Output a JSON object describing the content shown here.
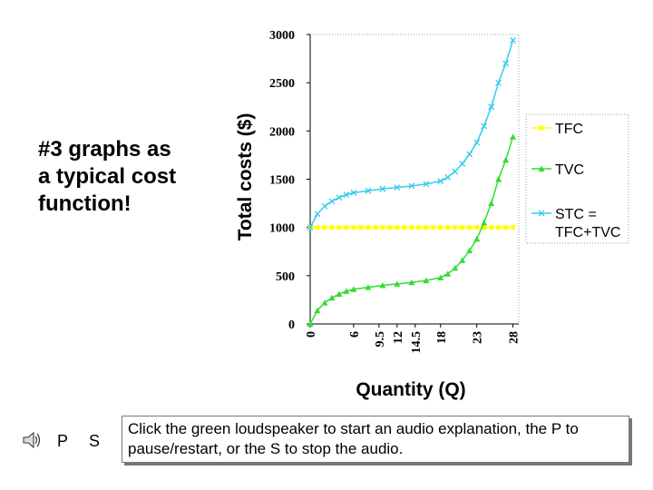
{
  "slide": {
    "heading_lines": [
      "#3 graphs as",
      "a typical cost",
      "function!"
    ],
    "audio": {
      "speaker_icon": "loudspeaker-icon",
      "pause_label": "P",
      "stop_label": "S",
      "instructions": "Click the green loudspeaker to start an audio explanation, the P to pause/restart, or the S to stop the audio."
    }
  },
  "chart_data": {
    "type": "line",
    "title": "",
    "xlabel": "Quantity (Q)",
    "ylabel": "Total costs ($)",
    "ylim": [
      0,
      3000
    ],
    "yticks": [
      "0",
      "500",
      "1000",
      "1500",
      "2000",
      "2500",
      "3000"
    ],
    "xtick_labels": [
      "0",
      "6",
      "9.5",
      "12",
      "14.5",
      "18",
      "23",
      "28"
    ],
    "xtick_at": [
      0,
      6,
      9.5,
      12,
      14.5,
      18,
      23,
      28
    ],
    "xlim": [
      0,
      28.8
    ],
    "grid": false,
    "legend_position": "right",
    "series": [
      {
        "name": "TFC",
        "color": "#ffff00",
        "marker": "square",
        "x": [
          0,
          28
        ],
        "values": [
          1000,
          1000
        ]
      },
      {
        "name": "TVC",
        "color": "#33dd33",
        "marker": "triangle",
        "x": [
          0,
          1,
          2,
          3,
          4,
          5,
          6,
          8,
          10,
          12,
          14,
          16,
          18,
          19,
          20,
          21,
          22,
          23,
          24,
          25,
          26,
          27,
          28
        ],
        "values": [
          0,
          140,
          220,
          270,
          310,
          340,
          360,
          380,
          400,
          415,
          430,
          450,
          480,
          520,
          580,
          660,
          760,
          880,
          1050,
          1250,
          1500,
          1700,
          1940
        ]
      },
      {
        "name": "STC = TFC+TVC",
        "color": "#33ccee",
        "marker": "x",
        "x": [
          0,
          1,
          2,
          3,
          4,
          5,
          6,
          8,
          10,
          12,
          14,
          16,
          18,
          19,
          20,
          21,
          22,
          23,
          24,
          25,
          26,
          27,
          28
        ],
        "values": [
          1000,
          1140,
          1220,
          1270,
          1310,
          1340,
          1360,
          1380,
          1400,
          1415,
          1430,
          1450,
          1480,
          1520,
          1580,
          1660,
          1760,
          1880,
          2050,
          2250,
          2500,
          2700,
          2940
        ]
      }
    ]
  }
}
